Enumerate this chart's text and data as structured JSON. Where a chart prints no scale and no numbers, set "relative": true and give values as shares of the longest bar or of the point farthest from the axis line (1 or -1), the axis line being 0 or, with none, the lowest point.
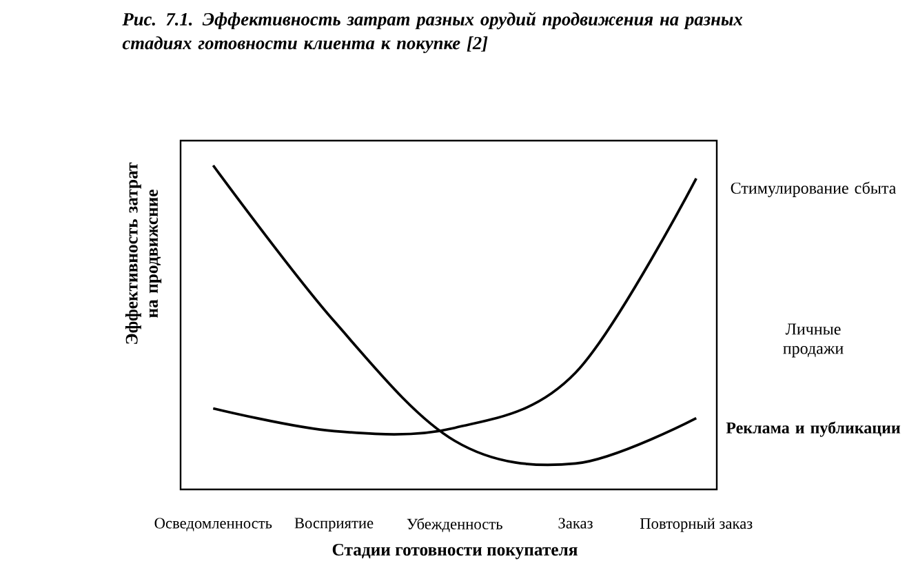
{
  "chart_data": {
    "type": "line",
    "title": "Рис. 7.1. Эффективность затрат разных орудий продвижения на разных стадиях готовности клиента к покупке [2]",
    "xlabel": "Стадии готовности покупателя",
    "ylabel": "Эффективность затрат на продвижсние",
    "categories": [
      "Осведомленность",
      "Восприятие",
      "Убежденность",
      "Заказ",
      "Повторный заказ"
    ],
    "relative": true,
    "series": [
      {
        "name": "Стимулирование сбыта",
        "color": "#000000",
        "values": [
          0.25,
          0.18,
          0.19,
          0.36,
          0.96
        ]
      },
      {
        "name": "Реклама и публикации",
        "color": "#000000",
        "values": [
          1,
          0.52,
          0.15,
          0.08,
          0.22
        ]
      }
    ],
    "annotations": [
      "Личные продажи"
    ]
  }
}
